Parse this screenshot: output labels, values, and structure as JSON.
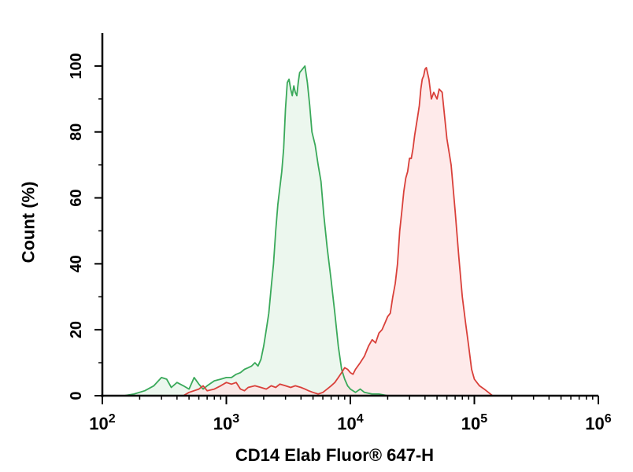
{
  "chart_data": {
    "type": "area",
    "title": "",
    "xlabel": "CD14 Elab Fluor® 647-H",
    "ylabel": "Count (%)",
    "x_scale": "log",
    "xlim": [
      100,
      1000000
    ],
    "ylim": [
      0,
      110
    ],
    "x_ticks": [
      {
        "value": 100,
        "base": "10",
        "exp": "2"
      },
      {
        "value": 1000,
        "base": "10",
        "exp": "3"
      },
      {
        "value": 10000,
        "base": "10",
        "exp": "4"
      },
      {
        "value": 100000,
        "base": "10",
        "exp": "5"
      },
      {
        "value": 1000000,
        "base": "10",
        "exp": "6"
      }
    ],
    "y_ticks": [
      "0",
      "20",
      "40",
      "60",
      "80",
      "100"
    ],
    "grid": false,
    "series": [
      {
        "line_color": "#3aa95a",
        "fill_color": "#e6f4e8",
        "points": [
          [
            150,
            0
          ],
          [
            180,
            0.5
          ],
          [
            220,
            1.5
          ],
          [
            260,
            3
          ],
          [
            300,
            5.5
          ],
          [
            330,
            5
          ],
          [
            360,
            2.5
          ],
          [
            400,
            4
          ],
          [
            450,
            3
          ],
          [
            500,
            2
          ],
          [
            550,
            5.5
          ],
          [
            600,
            3.5
          ],
          [
            650,
            2
          ],
          [
            700,
            3
          ],
          [
            800,
            4.5
          ],
          [
            900,
            5
          ],
          [
            1000,
            5.5
          ],
          [
            1100,
            5.5
          ],
          [
            1200,
            6.5
          ],
          [
            1300,
            7
          ],
          [
            1400,
            8
          ],
          [
            1500,
            8.5
          ],
          [
            1600,
            9
          ],
          [
            1700,
            10
          ],
          [
            1800,
            9
          ],
          [
            1900,
            11
          ],
          [
            2000,
            15
          ],
          [
            2100,
            20
          ],
          [
            2200,
            25
          ],
          [
            2300,
            33
          ],
          [
            2400,
            40
          ],
          [
            2500,
            50
          ],
          [
            2600,
            58
          ],
          [
            2700,
            63
          ],
          [
            2800,
            68
          ],
          [
            2900,
            75
          ],
          [
            3000,
            87
          ],
          [
            3100,
            95
          ],
          [
            3200,
            96
          ],
          [
            3300,
            93
          ],
          [
            3400,
            91
          ],
          [
            3500,
            94
          ],
          [
            3600,
            92
          ],
          [
            3700,
            91
          ],
          [
            3800,
            95
          ],
          [
            3900,
            98
          ],
          [
            4100,
            99
          ],
          [
            4300,
            100
          ],
          [
            4500,
            95
          ],
          [
            4700,
            88
          ],
          [
            4900,
            80
          ],
          [
            5200,
            76
          ],
          [
            5500,
            70
          ],
          [
            5800,
            65
          ],
          [
            6100,
            55
          ],
          [
            6500,
            45
          ],
          [
            7000,
            35
          ],
          [
            7500,
            25
          ],
          [
            8000,
            15
          ],
          [
            8500,
            8
          ],
          [
            9000,
            5
          ],
          [
            9500,
            3
          ],
          [
            10000,
            2
          ],
          [
            11000,
            1
          ],
          [
            12000,
            2
          ],
          [
            13000,
            1
          ],
          [
            15000,
            0.5
          ],
          [
            17000,
            0.5
          ],
          [
            20000,
            0
          ]
        ]
      },
      {
        "line_color": "#d9403a",
        "fill_color": "#fde3e3",
        "points": [
          [
            450,
            0
          ],
          [
            500,
            1
          ],
          [
            600,
            2
          ],
          [
            650,
            3
          ],
          [
            700,
            1.5
          ],
          [
            800,
            2
          ],
          [
            900,
            3
          ],
          [
            1000,
            4
          ],
          [
            1100,
            3.5
          ],
          [
            1200,
            4
          ],
          [
            1300,
            2
          ],
          [
            1400,
            1.5
          ],
          [
            1500,
            2.5
          ],
          [
            1700,
            3
          ],
          [
            1900,
            2.5
          ],
          [
            2100,
            2
          ],
          [
            2300,
            3
          ],
          [
            2500,
            2.5
          ],
          [
            2700,
            3.5
          ],
          [
            3000,
            3
          ],
          [
            3300,
            2.5
          ],
          [
            3600,
            3
          ],
          [
            4000,
            2.5
          ],
          [
            4300,
            2
          ],
          [
            4600,
            1.5
          ],
          [
            5000,
            1
          ],
          [
            5500,
            0.5
          ],
          [
            6000,
            1
          ],
          [
            6500,
            2
          ],
          [
            7000,
            3
          ],
          [
            7500,
            4
          ],
          [
            8000,
            5.5
          ],
          [
            8500,
            7
          ],
          [
            9000,
            8.5
          ],
          [
            9500,
            8
          ],
          [
            10000,
            7
          ],
          [
            10500,
            6.5
          ],
          [
            11000,
            8
          ],
          [
            12000,
            10
          ],
          [
            13000,
            12
          ],
          [
            14000,
            15
          ],
          [
            15000,
            17
          ],
          [
            16000,
            16
          ],
          [
            17000,
            19
          ],
          [
            18000,
            20
          ],
          [
            19000,
            22
          ],
          [
            20000,
            24
          ],
          [
            21000,
            25
          ],
          [
            22000,
            30
          ],
          [
            23000,
            34
          ],
          [
            24000,
            40
          ],
          [
            25000,
            50
          ],
          [
            26000,
            56
          ],
          [
            27000,
            62
          ],
          [
            28000,
            66
          ],
          [
            29000,
            68
          ],
          [
            30000,
            72
          ],
          [
            31000,
            72
          ],
          [
            32000,
            75
          ],
          [
            33000,
            79
          ],
          [
            34000,
            82
          ],
          [
            35000,
            85
          ],
          [
            36000,
            88
          ],
          [
            37000,
            93
          ],
          [
            38000,
            96
          ],
          [
            39000,
            97
          ],
          [
            40000,
            99
          ],
          [
            41000,
            99.5
          ],
          [
            43000,
            96
          ],
          [
            45000,
            90
          ],
          [
            47000,
            92
          ],
          [
            50000,
            90
          ],
          [
            52000,
            93
          ],
          [
            55000,
            92
          ],
          [
            60000,
            78
          ],
          [
            65000,
            70
          ],
          [
            70000,
            56
          ],
          [
            75000,
            42
          ],
          [
            80000,
            30
          ],
          [
            85000,
            22
          ],
          [
            90000,
            15
          ],
          [
            95000,
            8
          ],
          [
            100000,
            5
          ],
          [
            110000,
            3
          ],
          [
            120000,
            2
          ],
          [
            130000,
            1
          ],
          [
            140000,
            0
          ]
        ]
      }
    ]
  }
}
